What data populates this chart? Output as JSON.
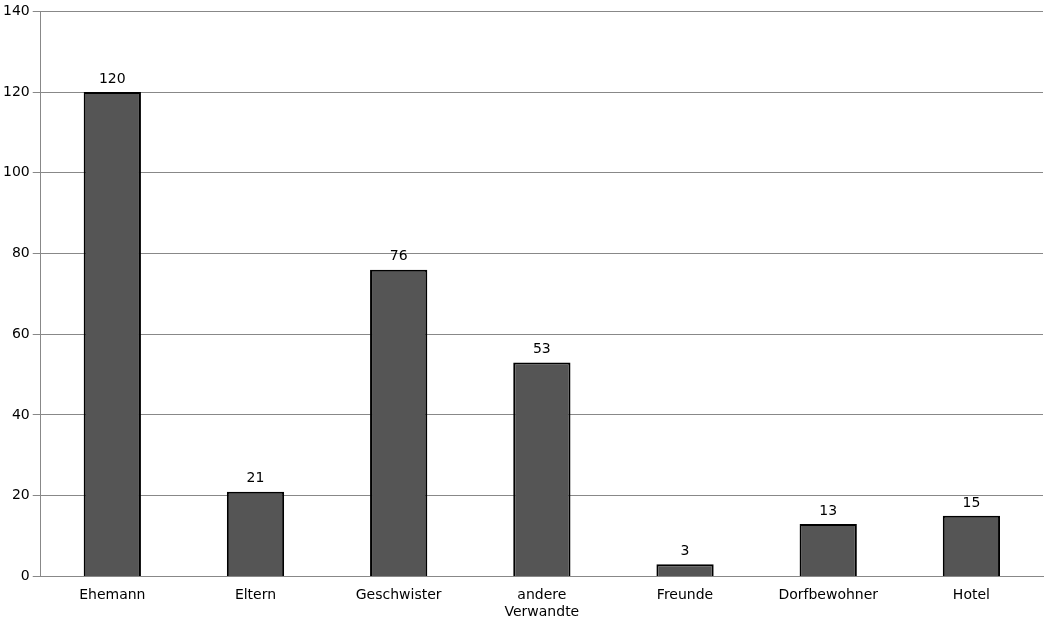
{
  "chart_data": {
    "type": "bar",
    "categories": [
      "Ehemann",
      "Eltern",
      "Geschwister",
      "andere Verwandte",
      "Freunde",
      "Dorfbewohner",
      "Hotel"
    ],
    "values": [
      120,
      21,
      76,
      53,
      3,
      13,
      15
    ],
    "color": "#555555",
    "ylim": [
      0,
      140
    ],
    "yticks": [
      0,
      20,
      40,
      60,
      80,
      100,
      120,
      140
    ],
    "grid": "y",
    "data_labels": true,
    "legend": false
  }
}
